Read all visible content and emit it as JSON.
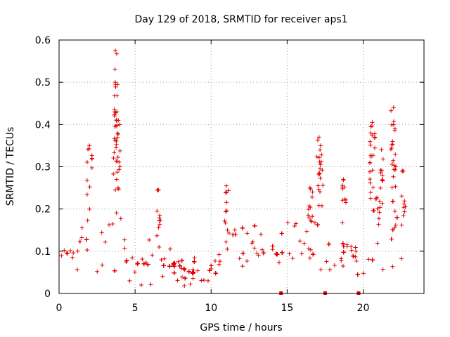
{
  "chart_data": {
    "type": "scatter",
    "title": "Day 129 of 2018, SRMTID for receiver aps1",
    "xlabel": "GPS time / hours",
    "ylabel": "SRMTID / TECUs",
    "xlim": [
      0,
      24
    ],
    "ylim": [
      0,
      0.6
    ],
    "xticks": [
      0,
      5,
      10,
      15,
      20
    ],
    "yticks": [
      0,
      0.1,
      0.2,
      0.3,
      0.4,
      0.5,
      0.6
    ],
    "xtick_labels": [
      "0",
      "5",
      "10",
      "15",
      "20"
    ],
    "ytick_labels": [
      "0",
      "0.1",
      "0.2",
      "0.3",
      "0.4",
      "0.5",
      "0.6"
    ],
    "marker": "+",
    "color": "#e00000",
    "grid": true,
    "series": [
      {
        "name": "SRMTID aps1",
        "envelope": {
          "x": [
            0.0,
            0.5,
            1.0,
            1.5,
            2.0,
            2.5,
            3.0,
            3.5,
            3.8,
            4.2,
            4.6,
            5.0,
            5.5,
            6.0,
            6.5,
            7.0,
            7.5,
            8.0,
            8.5,
            9.0,
            9.5,
            10.0,
            10.5,
            11.0,
            11.5,
            12.0,
            12.5,
            13.0,
            13.5,
            14.0,
            14.5,
            15.0,
            15.5,
            16.0,
            16.5,
            17.0,
            17.5,
            18.0,
            18.5,
            19.0,
            19.5,
            20.0,
            20.5,
            21.0,
            21.5,
            22.0,
            22.5,
            22.8
          ],
          "mean": [
            0.06,
            0.08,
            0.1,
            0.12,
            0.12,
            0.1,
            0.1,
            0.12,
            0.2,
            0.15,
            0.07,
            0.06,
            0.07,
            0.07,
            0.07,
            0.07,
            0.06,
            0.05,
            0.05,
            0.05,
            0.05,
            0.05,
            0.07,
            0.09,
            0.1,
            0.1,
            0.11,
            0.11,
            0.12,
            0.11,
            0.1,
            0.13,
            0.15,
            0.14,
            0.12,
            0.12,
            0.11,
            0.09,
            0.08,
            0.09,
            0.08,
            0.1,
            0.16,
            0.17,
            0.17,
            0.15,
            0.12,
            0.1
          ],
          "spread": [
            0.05,
            0.06,
            0.07,
            0.08,
            0.09,
            0.07,
            0.07,
            0.09,
            0.15,
            0.09,
            0.05,
            0.05,
            0.06,
            0.06,
            0.06,
            0.06,
            0.05,
            0.04,
            0.04,
            0.04,
            0.04,
            0.05,
            0.07,
            0.07,
            0.07,
            0.07,
            0.07,
            0.07,
            0.07,
            0.06,
            0.06,
            0.07,
            0.07,
            0.08,
            0.08,
            0.09,
            0.07,
            0.06,
            0.06,
            0.07,
            0.06,
            0.07,
            0.11,
            0.11,
            0.11,
            0.1,
            0.08,
            0.06
          ]
        },
        "peaks": [
          {
            "x": 2.0,
            "y": 0.35
          },
          {
            "x": 3.7,
            "y": 0.575
          },
          {
            "x": 3.7,
            "y": 0.5
          },
          {
            "x": 3.8,
            "y": 0.43
          },
          {
            "x": 3.9,
            "y": 0.41
          },
          {
            "x": 6.5,
            "y": 0.245
          },
          {
            "x": 11.0,
            "y": 0.255
          },
          {
            "x": 16.5,
            "y": 0.25
          },
          {
            "x": 17.1,
            "y": 0.37
          },
          {
            "x": 17.2,
            "y": 0.35
          },
          {
            "x": 18.7,
            "y": 0.27
          },
          {
            "x": 20.6,
            "y": 0.405
          },
          {
            "x": 20.5,
            "y": 0.38
          },
          {
            "x": 21.2,
            "y": 0.34
          },
          {
            "x": 22.0,
            "y": 0.44
          },
          {
            "x": 22.0,
            "y": 0.4
          },
          {
            "x": 22.6,
            "y": 0.29
          }
        ],
        "gap_markers_x": [
          14.6,
          17.5,
          19.7
        ]
      }
    ]
  }
}
